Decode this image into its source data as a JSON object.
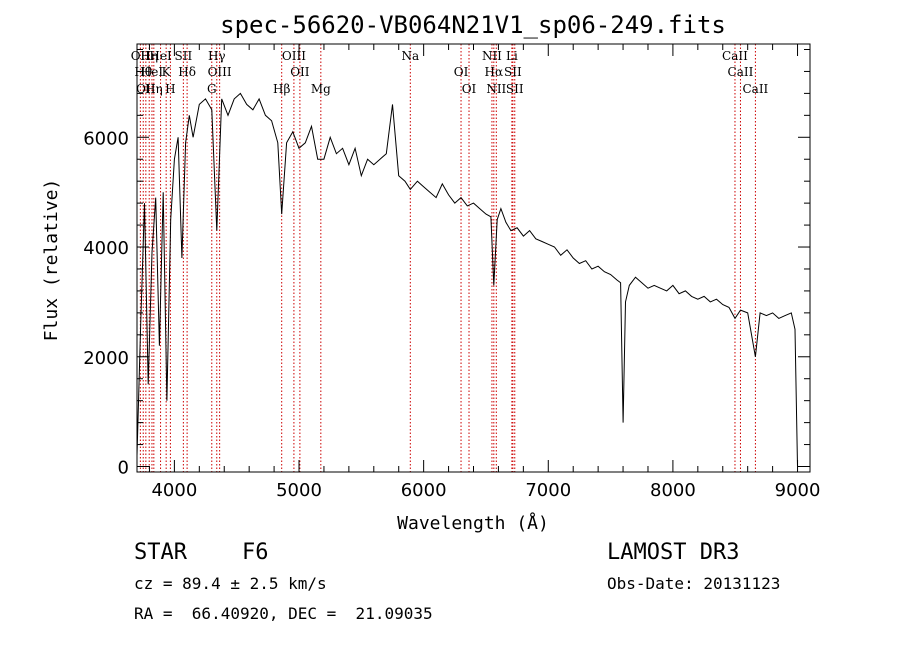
{
  "chart_data": {
    "type": "line",
    "title": "spec-56620-VB064N21V1_sp06-249.fits",
    "xlabel": "Wavelength (Å)",
    "ylabel": "Flux (relative)",
    "xlim": [
      3700,
      9100
    ],
    "ylim": [
      -100,
      7700
    ],
    "xticks": [
      4000,
      5000,
      6000,
      7000,
      8000,
      9000
    ],
    "xtick_labels": [
      "4000",
      "5000",
      "6000",
      "7000",
      "8000",
      "9000"
    ],
    "yticks": [
      0,
      2000,
      4000,
      6000
    ],
    "ytick_labels": [
      "0",
      "2000",
      "4000",
      "6000"
    ],
    "series": [
      {
        "name": "flux",
        "x": [
          3700,
          3730,
          3760,
          3790,
          3820,
          3850,
          3880,
          3910,
          3940,
          3970,
          4000,
          4030,
          4060,
          4090,
          4120,
          4150,
          4200,
          4250,
          4300,
          4340,
          4380,
          4430,
          4480,
          4530,
          4580,
          4630,
          4680,
          4730,
          4780,
          4830,
          4861,
          4900,
          4950,
          5000,
          5050,
          5100,
          5150,
          5200,
          5250,
          5300,
          5350,
          5400,
          5450,
          5500,
          5550,
          5600,
          5650,
          5700,
          5750,
          5800,
          5850,
          5893,
          5950,
          6000,
          6050,
          6100,
          6150,
          6200,
          6250,
          6300,
          6350,
          6400,
          6450,
          6500,
          6540,
          6563,
          6590,
          6620,
          6660,
          6700,
          6750,
          6800,
          6850,
          6900,
          6950,
          7000,
          7050,
          7100,
          7150,
          7200,
          7250,
          7300,
          7350,
          7400,
          7450,
          7500,
          7550,
          7580,
          7600,
          7620,
          7650,
          7700,
          7750,
          7800,
          7850,
          7900,
          7950,
          8000,
          8050,
          8100,
          8150,
          8200,
          8250,
          8300,
          8350,
          8400,
          8450,
          8498,
          8542,
          8600,
          8662,
          8700,
          8750,
          8800,
          8850,
          8900,
          8950,
          8980,
          9000
        ],
        "y": [
          200,
          2600,
          4800,
          1500,
          3900,
          4900,
          2200,
          5000,
          1200,
          4500,
          5600,
          6000,
          3800,
          5900,
          6400,
          6000,
          6600,
          6700,
          6500,
          4300,
          6700,
          6400,
          6700,
          6800,
          6600,
          6500,
          6700,
          6400,
          6300,
          5900,
          4600,
          5900,
          6100,
          5800,
          5900,
          6200,
          5600,
          5600,
          6000,
          5700,
          5800,
          5500,
          5800,
          5300,
          5600,
          5500,
          5600,
          5700,
          6600,
          5300,
          5200,
          5050,
          5200,
          5100,
          5000,
          4900,
          5150,
          4950,
          4800,
          4900,
          4750,
          4800,
          4700,
          4600,
          4550,
          3300,
          4500,
          4700,
          4450,
          4300,
          4350,
          4200,
          4300,
          4150,
          4100,
          4050,
          4000,
          3850,
          3950,
          3800,
          3700,
          3750,
          3600,
          3650,
          3550,
          3500,
          3400,
          3350,
          800,
          3000,
          3300,
          3450,
          3350,
          3250,
          3300,
          3250,
          3200,
          3300,
          3150,
          3200,
          3100,
          3050,
          3100,
          3000,
          3050,
          2950,
          2900,
          2700,
          2850,
          2800,
          2000,
          2800,
          2750,
          2800,
          2700,
          2750,
          2800,
          2500,
          0
        ]
      }
    ],
    "line_markers": [
      {
        "wavelength": 3727,
        "label": "OII"
      },
      {
        "wavelength": 3750,
        "label": "Hθ"
      },
      {
        "wavelength": 3771,
        "label": "OII"
      },
      {
        "wavelength": 3798,
        "label": "Hη"
      },
      {
        "wavelength": 3820,
        "label": "HeI"
      },
      {
        "wavelength": 3835,
        "label": "Hη"
      },
      {
        "wavelength": 3889,
        "label": "HeI"
      },
      {
        "wavelength": 3934,
        "label": "K"
      },
      {
        "wavelength": 3968,
        "label": "H"
      },
      {
        "wavelength": 4072,
        "label": "SII"
      },
      {
        "wavelength": 4102,
        "label": "Hδ"
      },
      {
        "wavelength": 4300,
        "label": "G"
      },
      {
        "wavelength": 4340,
        "label": "Hγ"
      },
      {
        "wavelength": 4363,
        "label": "OIII"
      },
      {
        "wavelength": 4861,
        "label": "Hβ"
      },
      {
        "wavelength": 4959,
        "label": "OIII"
      },
      {
        "wavelength": 5007,
        "label": "OII"
      },
      {
        "wavelength": 5175,
        "label": "Mg"
      },
      {
        "wavelength": 5893,
        "label": "Na"
      },
      {
        "wavelength": 6300,
        "label": "OI"
      },
      {
        "wavelength": 6364,
        "label": "OI"
      },
      {
        "wavelength": 6548,
        "label": "NII"
      },
      {
        "wavelength": 6563,
        "label": "Hα"
      },
      {
        "wavelength": 6583,
        "label": "NII"
      },
      {
        "wavelength": 6708,
        "label": "Li"
      },
      {
        "wavelength": 6716,
        "label": "SII"
      },
      {
        "wavelength": 6731,
        "label": "SII"
      },
      {
        "wavelength": 8498,
        "label": "CaII"
      },
      {
        "wavelength": 8542,
        "label": "CaII"
      },
      {
        "wavelength": 8662,
        "label": "CaII"
      }
    ],
    "line_color": "#000000",
    "marker_color": "#cc0000"
  },
  "info": {
    "class_label": "STAR",
    "subclass": "F6",
    "survey": "LAMOST DR3",
    "cz_text": "cz = 89.4 ± 2.5 km/s",
    "obs_date_text": "Obs-Date: 20131123",
    "coords_text": "RA =  66.40920, DEC =  21.09035"
  }
}
